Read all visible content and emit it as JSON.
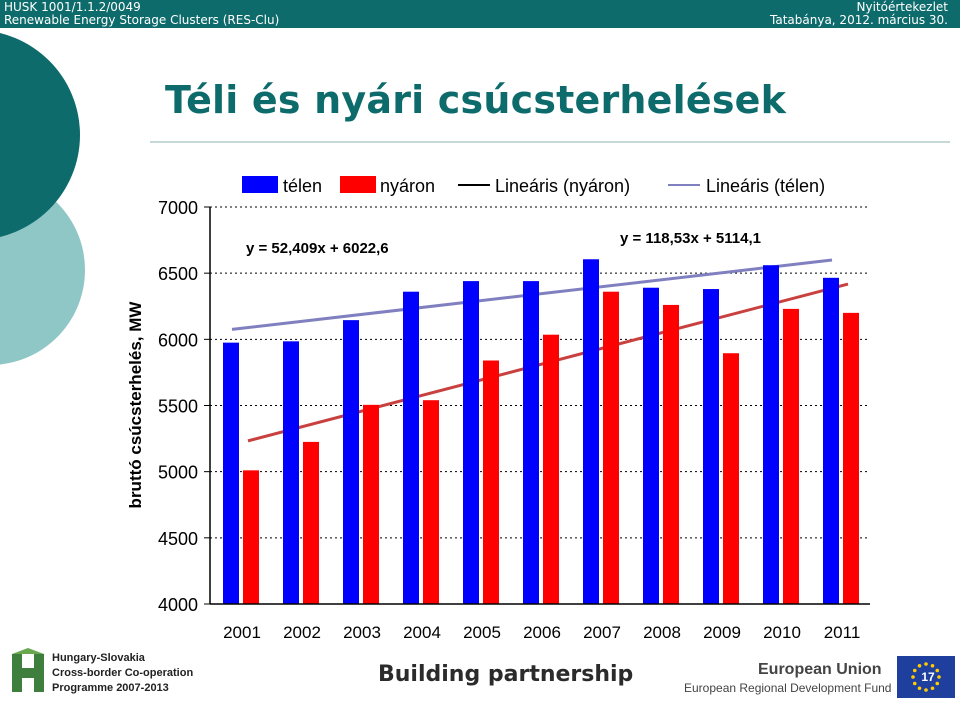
{
  "header": {
    "left_line1": "HUSK 1001/1.1.2/0049",
    "left_line2": "Renewable Energy Storage Clusters (RES-Clu)",
    "right_line1": "Nyitóértekezlet",
    "right_line2": "Tatabánya, 2012. március 30."
  },
  "slide_title": "Téli és nyári csúcsterhelések",
  "colors": {
    "header_bg": "#0e6b6b",
    "title": "#0e6b6b",
    "telen": "#0000ff",
    "nyaron": "#ff0000",
    "trend_nyaron": "#c8413f",
    "trend_telen": "#8080c0"
  },
  "chart_data": {
    "type": "bar",
    "categories": [
      "2001",
      "2002",
      "2003",
      "2004",
      "2005",
      "2006",
      "2007",
      "2008",
      "2009",
      "2010",
      "2011"
    ],
    "series": [
      {
        "name": "télen",
        "values": [
          5975,
          5985,
          6145,
          6360,
          6440,
          6440,
          6605,
          6390,
          6380,
          6560,
          6465
        ]
      },
      {
        "name": "nyáron",
        "values": [
          5010,
          5225,
          5505,
          5540,
          5840,
          6035,
          6360,
          6260,
          5895,
          6230,
          6200
        ]
      }
    ],
    "trendlines": [
      {
        "name": "Lineáris (nyáron)",
        "equation": "y = 118,53x + 5114,1",
        "slope": 118.53,
        "intercept": 5114.1
      },
      {
        "name": "Lineáris (télen)",
        "equation": "y = 52,409x + 6022,6",
        "slope": 52.409,
        "intercept": 6022.6
      }
    ],
    "ylabel": "bruttó csúcsterhelés, MW",
    "xlabel": "",
    "ylim": [
      4000,
      7000
    ],
    "yticks": [
      "4000",
      "4500",
      "5000",
      "5500",
      "6000",
      "6500",
      "7000"
    ],
    "grid": true,
    "legend_position": "top",
    "legend": [
      "télen",
      "nyáron",
      "Lineáris (nyáron)",
      "Lineáris (télen)"
    ]
  },
  "footer": {
    "husk_line1": "Hungary-Slovakia",
    "husk_line2": "Cross-border Co-operation",
    "husk_line3": "Programme 2007-2013",
    "building": "Building partnership",
    "eu_title": "European Union",
    "eu_sub": "European Regional Development Fund",
    "page_number": "17"
  }
}
